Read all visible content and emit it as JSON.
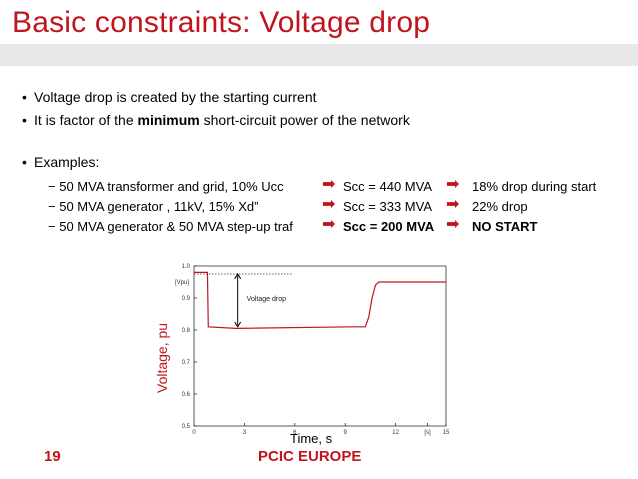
{
  "slide": {
    "title": "Basic constraints: Voltage drop",
    "bullets": [
      {
        "pre": "Voltage drop is created by the starting current",
        "bold": "",
        "post": ""
      },
      {
        "pre": "It is factor of the ",
        "bold": "minimum",
        "post": " short-circuit power of the network"
      }
    ],
    "examples_label": "Examples:",
    "examples": [
      {
        "case": "50 MVA transformer and grid, 10% Ucc",
        "scc": "Scc = 440 MVA",
        "result": "18% drop during start"
      },
      {
        "case": "50 MVA generator ,  11kV,  15% Xd”",
        "scc": "Scc = 333 MVA",
        "result": "22% drop"
      },
      {
        "case": "50 MVA generator & 50 MVA step-up traf",
        "scc": "Scc = 200 MVA",
        "result": "NO START"
      }
    ],
    "dash": "−",
    "page_number": "19",
    "footer": "PCIC EUROPE",
    "colors": {
      "accent": "#c0141e",
      "band": "#e8e8e8"
    }
  },
  "chart_data": {
    "type": "line",
    "ylabel": "Voltage, pu",
    "xlabel": "Time, s",
    "y_unit_label": "[Vpu]",
    "x_unit_label": "[s]",
    "annotation": "Voltage drop",
    "xlim": [
      0,
      15
    ],
    "ylim": [
      0.5,
      1.0
    ],
    "x_ticks": [
      "0",
      "3",
      "6",
      "9",
      "12",
      "[s]",
      "15"
    ],
    "x_tick_values": [
      0,
      3,
      6,
      9,
      12,
      13.9,
      15
    ],
    "y_ticks": [
      "0.5",
      "0.6",
      "0.7",
      "0.8",
      "0.9",
      "1.0"
    ],
    "y_tick_values": [
      0.5,
      0.6,
      0.7,
      0.8,
      0.9,
      1.0
    ],
    "series": [
      {
        "color": "#c0141e",
        "x": [
          0,
          0.05,
          0.8,
          0.85,
          2.5,
          9.5,
          10.2,
          10.4,
          10.6,
          10.8,
          11.0,
          15
        ],
        "y": [
          0.98,
          0.98,
          0.98,
          0.81,
          0.805,
          0.81,
          0.81,
          0.84,
          0.9,
          0.94,
          0.95,
          0.95
        ]
      }
    ],
    "reference_level": 0.975
  }
}
